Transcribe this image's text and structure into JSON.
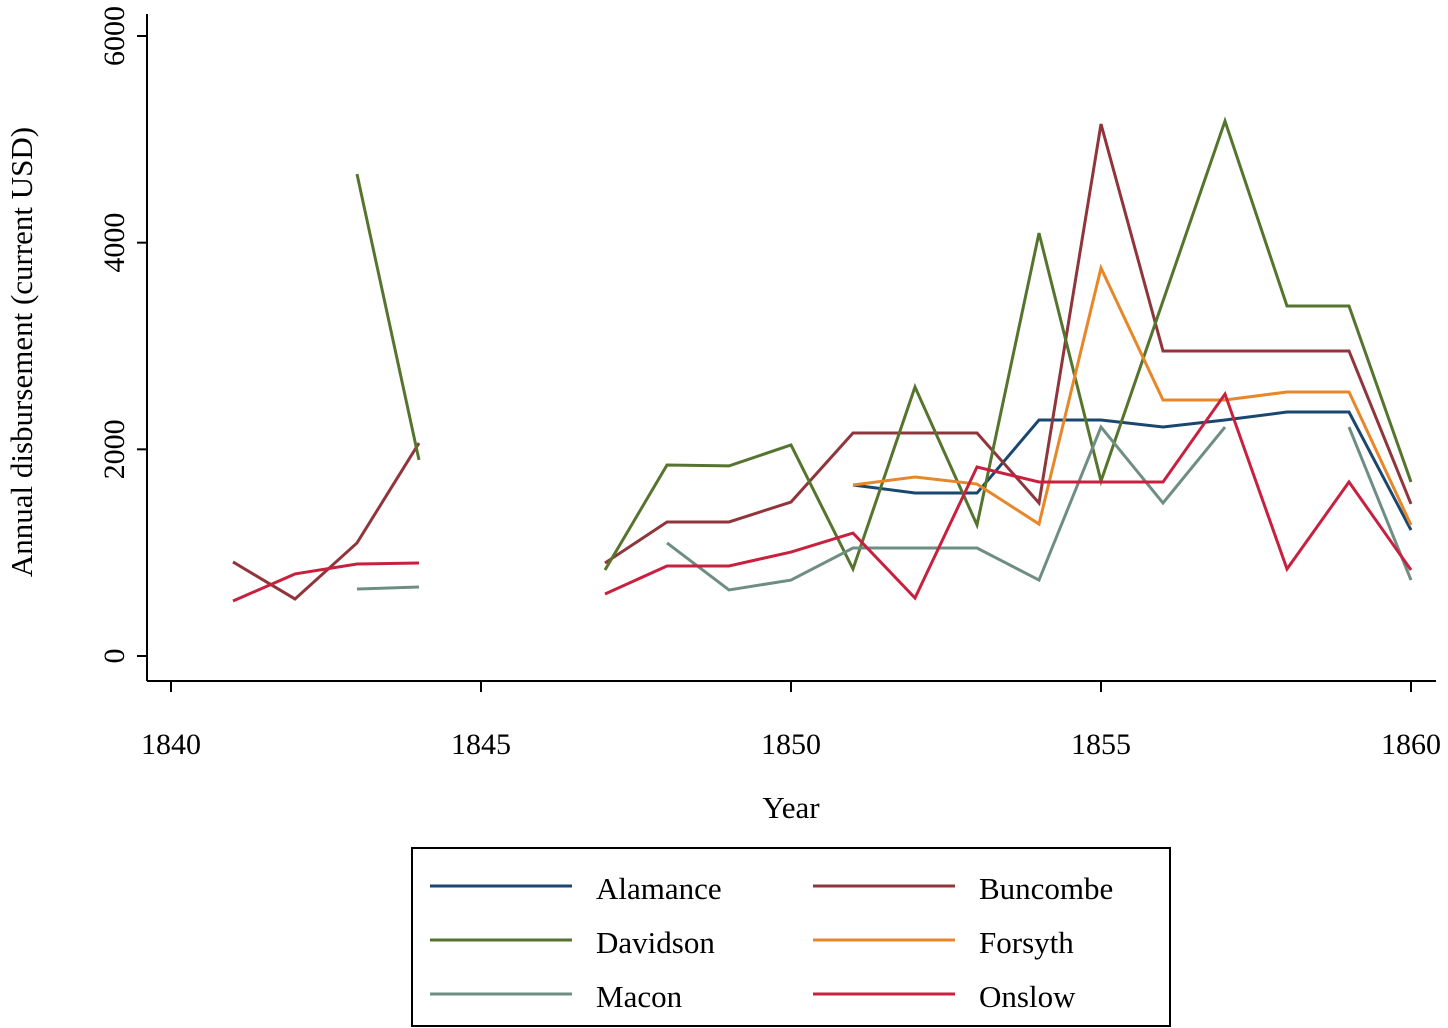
{
  "chart_data": {
    "type": "line",
    "title": "",
    "xlabel": "Year",
    "ylabel": "Annual disbursement (current USD)",
    "xlim": [
      1840,
      1860
    ],
    "ylim": [
      0,
      6000
    ],
    "x_ticks": [
      "1840",
      "1845",
      "1850",
      "1855",
      "1860"
    ],
    "y_ticks": [
      "0",
      "2000",
      "4000",
      "6000"
    ],
    "grid": false,
    "legend_position": "bottom",
    "series": [
      {
        "name": "Alamance",
        "color": "#1a476f",
        "points": [
          [
            1851,
            1655
          ],
          [
            1852,
            1577
          ],
          [
            1853,
            1577
          ],
          [
            1854,
            2284
          ],
          [
            1855,
            2284
          ],
          [
            1856,
            2216
          ],
          [
            1857,
            2284
          ],
          [
            1858,
            2361
          ],
          [
            1859,
            2361
          ],
          [
            1860,
            1219
          ]
        ]
      },
      {
        "name": "Buncombe",
        "color": "#90353b",
        "points": [
          [
            1841,
            910
          ],
          [
            1842,
            552
          ],
          [
            1843,
            1094
          ],
          [
            1844,
            2061
          ],
          null,
          [
            1847,
            900
          ],
          [
            1848,
            1297
          ],
          [
            1849,
            1297
          ],
          [
            1850,
            1490
          ],
          [
            1851,
            2158
          ],
          [
            1852,
            2158
          ],
          [
            1853,
            2158
          ],
          [
            1854,
            1481
          ],
          [
            1855,
            5148
          ],
          [
            1856,
            2952
          ],
          [
            1857,
            2952
          ],
          [
            1858,
            2952
          ],
          [
            1859,
            2952
          ],
          [
            1860,
            1471
          ]
        ]
      },
      {
        "name": "Davidson",
        "color": "#55752f",
        "points": [
          [
            1843,
            4664
          ],
          [
            1844,
            1897
          ],
          null,
          [
            1847,
            832
          ],
          [
            1848,
            1848
          ],
          [
            1849,
            1840
          ],
          [
            1850,
            2042
          ],
          [
            1851,
            842
          ],
          [
            1852,
            2603
          ],
          [
            1853,
            1268
          ],
          [
            1854,
            4093
          ],
          [
            1855,
            1693
          ],
          [
            1856,
            3435
          ],
          [
            1857,
            5177
          ],
          [
            1858,
            3387
          ],
          [
            1859,
            3387
          ],
          [
            1860,
            1684
          ]
        ]
      },
      {
        "name": "Forsyth",
        "color": "#e8862a",
        "points": [
          [
            1851,
            1655
          ],
          [
            1852,
            1732
          ],
          [
            1853,
            1664
          ],
          [
            1854,
            1277
          ],
          [
            1855,
            3755
          ],
          [
            1856,
            2477
          ],
          [
            1857,
            2477
          ],
          [
            1858,
            2555
          ],
          [
            1859,
            2555
          ],
          [
            1860,
            1268
          ]
        ]
      },
      {
        "name": "Macon",
        "color": "#6e8e84",
        "points": [
          [
            1843,
            648
          ],
          [
            1844,
            668
          ],
          null,
          [
            1848,
            1094
          ],
          [
            1849,
            639
          ],
          [
            1850,
            735
          ],
          [
            1851,
            1045
          ],
          [
            1852,
            1045
          ],
          [
            1853,
            1045
          ],
          [
            1854,
            735
          ],
          [
            1855,
            2216
          ],
          [
            1856,
            1481
          ],
          [
            1857,
            2216
          ],
          null,
          [
            1859,
            2216
          ],
          [
            1860,
            735
          ]
        ]
      },
      {
        "name": "Onslow",
        "color": "#c8203f",
        "points": [
          [
            1841,
            532
          ],
          [
            1842,
            794
          ],
          [
            1843,
            890
          ],
          [
            1844,
            900
          ],
          null,
          [
            1847,
            600
          ],
          [
            1848,
            871
          ],
          [
            1849,
            871
          ],
          [
            1850,
            1006
          ],
          [
            1851,
            1190
          ],
          [
            1852,
            561
          ],
          [
            1853,
            1829
          ],
          [
            1854,
            1684
          ],
          [
            1855,
            1684
          ],
          [
            1856,
            1684
          ],
          [
            1857,
            2535
          ],
          [
            1858,
            842
          ],
          [
            1859,
            1684
          ],
          [
            1860,
            832
          ]
        ]
      }
    ]
  }
}
